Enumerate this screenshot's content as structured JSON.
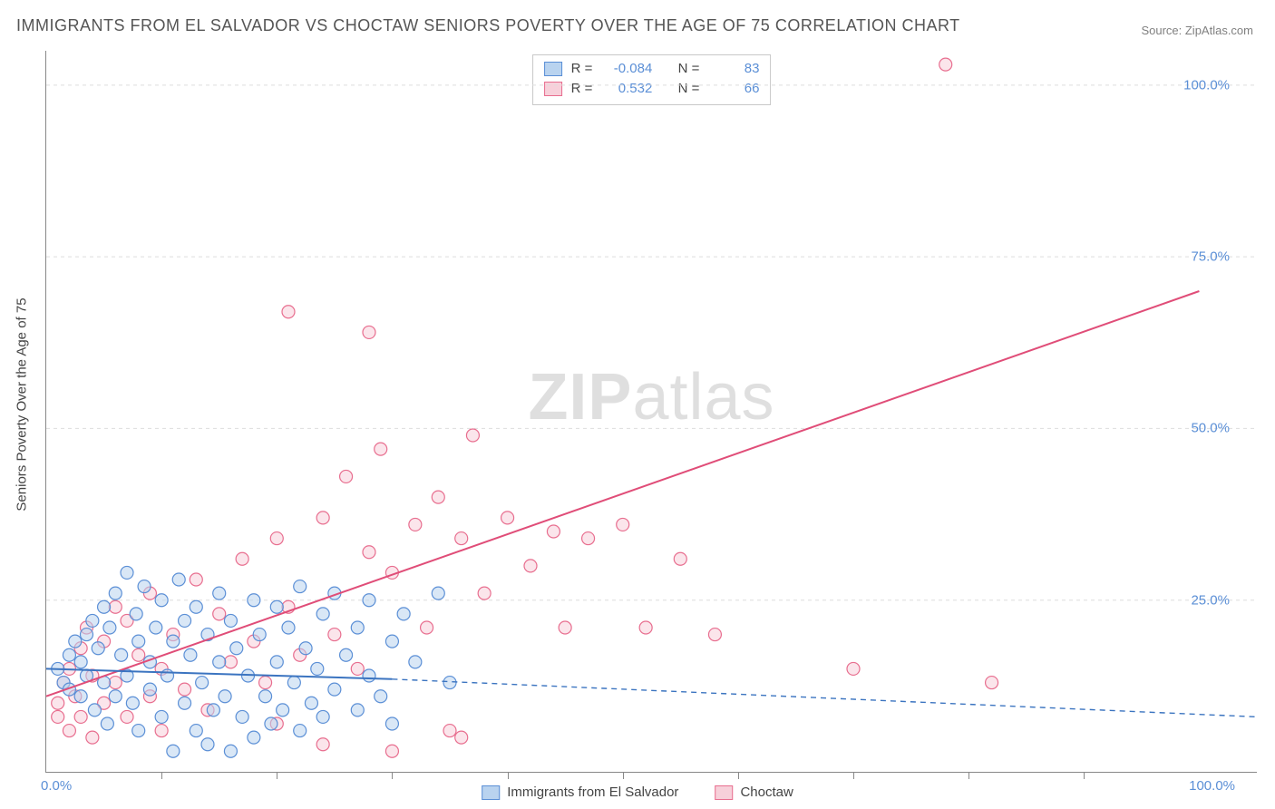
{
  "title": "IMMIGRANTS FROM EL SALVADOR VS CHOCTAW SENIORS POVERTY OVER THE AGE OF 75 CORRELATION CHART",
  "source_prefix": "Source: ",
  "source_name": "ZipAtlas.com",
  "ylabel": "Seniors Poverty Over the Age of 75",
  "watermark_bold": "ZIP",
  "watermark_rest": "atlas",
  "chart": {
    "type": "scatter",
    "xlim": [
      0,
      105
    ],
    "ylim": [
      0,
      105
    ],
    "grid_color": "#dddddd",
    "axis_color": "#888888",
    "background_color": "#ffffff",
    "tick_label_color": "#5b8fd6",
    "yticks": [
      25,
      50,
      75,
      100
    ],
    "ytick_labels": [
      "25.0%",
      "50.0%",
      "75.0%",
      "100.0%"
    ],
    "xticks_major": [
      0,
      100
    ],
    "xtick_labels": [
      "0.0%",
      "100.0%"
    ],
    "xticks_minor": [
      10,
      20,
      30,
      40,
      50,
      60,
      70,
      80,
      90
    ]
  },
  "series": [
    {
      "name": "Immigrants from El Salvador",
      "fill": "#b9d3ef",
      "stroke": "#5b8fd6",
      "line_color": "#3b74c0",
      "r_label": "R =",
      "r_value": "-0.084",
      "n_label": "N =",
      "n_value": "83",
      "trend": {
        "x1": 0,
        "y1": 15,
        "x2": 30,
        "y2": 13.5,
        "dash_x2": 105,
        "dash_y2": 8
      },
      "points": [
        [
          1,
          15
        ],
        [
          1.5,
          13
        ],
        [
          2,
          17
        ],
        [
          2,
          12
        ],
        [
          2.5,
          19
        ],
        [
          3,
          11
        ],
        [
          3,
          16
        ],
        [
          3.5,
          20
        ],
        [
          3.5,
          14
        ],
        [
          4,
          22
        ],
        [
          4.2,
          9
        ],
        [
          4.5,
          18
        ],
        [
          5,
          13
        ],
        [
          5,
          24
        ],
        [
          5.3,
          7
        ],
        [
          5.5,
          21
        ],
        [
          6,
          11
        ],
        [
          6,
          26
        ],
        [
          6.5,
          17
        ],
        [
          7,
          14
        ],
        [
          7,
          29
        ],
        [
          7.5,
          10
        ],
        [
          7.8,
          23
        ],
        [
          8,
          19
        ],
        [
          8,
          6
        ],
        [
          8.5,
          27
        ],
        [
          9,
          16
        ],
        [
          9,
          12
        ],
        [
          9.5,
          21
        ],
        [
          10,
          8
        ],
        [
          10,
          25
        ],
        [
          10.5,
          14
        ],
        [
          11,
          19
        ],
        [
          11,
          3
        ],
        [
          11.5,
          28
        ],
        [
          12,
          10
        ],
        [
          12,
          22
        ],
        [
          12.5,
          17
        ],
        [
          13,
          6
        ],
        [
          13,
          24
        ],
        [
          13.5,
          13
        ],
        [
          14,
          20
        ],
        [
          14,
          4
        ],
        [
          14.5,
          9
        ],
        [
          15,
          26
        ],
        [
          15,
          16
        ],
        [
          15.5,
          11
        ],
        [
          16,
          3
        ],
        [
          16,
          22
        ],
        [
          16.5,
          18
        ],
        [
          17,
          8
        ],
        [
          17.5,
          14
        ],
        [
          18,
          25
        ],
        [
          18,
          5
        ],
        [
          18.5,
          20
        ],
        [
          19,
          11
        ],
        [
          19.5,
          7
        ],
        [
          20,
          24
        ],
        [
          20,
          16
        ],
        [
          20.5,
          9
        ],
        [
          21,
          21
        ],
        [
          21.5,
          13
        ],
        [
          22,
          6
        ],
        [
          22,
          27
        ],
        [
          22.5,
          18
        ],
        [
          23,
          10
        ],
        [
          23.5,
          15
        ],
        [
          24,
          23
        ],
        [
          24,
          8
        ],
        [
          25,
          12
        ],
        [
          25,
          26
        ],
        [
          26,
          17
        ],
        [
          27,
          21
        ],
        [
          27,
          9
        ],
        [
          28,
          14
        ],
        [
          28,
          25
        ],
        [
          29,
          11
        ],
        [
          30,
          19
        ],
        [
          30,
          7
        ],
        [
          31,
          23
        ],
        [
          32,
          16
        ],
        [
          34,
          26
        ],
        [
          35,
          13
        ]
      ]
    },
    {
      "name": "Choctaw",
      "fill": "#f7d0da",
      "stroke": "#e86e8f",
      "line_color": "#e04d78",
      "r_label": "R =",
      "r_value": "0.532",
      "n_label": "N =",
      "n_value": "66",
      "trend": {
        "x1": 0,
        "y1": 11,
        "x2": 100,
        "y2": 70
      },
      "points": [
        [
          1,
          10
        ],
        [
          1,
          8
        ],
        [
          1.5,
          13
        ],
        [
          2,
          6
        ],
        [
          2,
          15
        ],
        [
          2.5,
          11
        ],
        [
          3,
          18
        ],
        [
          3,
          8
        ],
        [
          3.5,
          21
        ],
        [
          4,
          14
        ],
        [
          4,
          5
        ],
        [
          5,
          19
        ],
        [
          5,
          10
        ],
        [
          6,
          24
        ],
        [
          6,
          13
        ],
        [
          7,
          8
        ],
        [
          7,
          22
        ],
        [
          8,
          17
        ],
        [
          9,
          11
        ],
        [
          9,
          26
        ],
        [
          10,
          15
        ],
        [
          10,
          6
        ],
        [
          11,
          20
        ],
        [
          12,
          12
        ],
        [
          13,
          28
        ],
        [
          14,
          9
        ],
        [
          15,
          23
        ],
        [
          16,
          16
        ],
        [
          17,
          31
        ],
        [
          18,
          19
        ],
        [
          19,
          13
        ],
        [
          20,
          34
        ],
        [
          20,
          7
        ],
        [
          21,
          24
        ],
        [
          22,
          17
        ],
        [
          21,
          67
        ],
        [
          24,
          37
        ],
        [
          25,
          20
        ],
        [
          26,
          43
        ],
        [
          27,
          15
        ],
        [
          28,
          32
        ],
        [
          29,
          47
        ],
        [
          30,
          29
        ],
        [
          28,
          64
        ],
        [
          32,
          36
        ],
        [
          33,
          21
        ],
        [
          34,
          40
        ],
        [
          35,
          6
        ],
        [
          36,
          34
        ],
        [
          37,
          49
        ],
        [
          38,
          26
        ],
        [
          40,
          37
        ],
        [
          42,
          30
        ],
        [
          44,
          35
        ],
        [
          45,
          21
        ],
        [
          47,
          34
        ],
        [
          50,
          36
        ],
        [
          52,
          21
        ],
        [
          55,
          31
        ],
        [
          58,
          20
        ],
        [
          70,
          15
        ],
        [
          78,
          103
        ],
        [
          82,
          13
        ],
        [
          36,
          5
        ],
        [
          24,
          4
        ],
        [
          30,
          3
        ]
      ]
    }
  ],
  "legend": {
    "series1": "Immigrants from El Salvador",
    "series2": "Choctaw"
  },
  "marker_radius": 7,
  "marker_opacity": 0.55,
  "line_width": 2
}
